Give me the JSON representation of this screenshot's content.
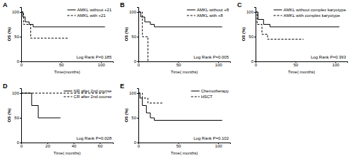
{
  "chart_data": [
    {
      "type": "line",
      "title": "A",
      "x_label": "Time(months)",
      "y_label": "OS (%)",
      "xlim": [
        0,
        115
      ],
      "ylim": [
        0,
        110
      ],
      "xticks": [
        0,
        50,
        100
      ],
      "yticks": [
        0,
        50,
        100
      ],
      "legend": "upper right",
      "annotations": [
        "Log Rank P=0.185"
      ],
      "series": [
        {
          "name": "AMKL without +21",
          "color": "#000000",
          "line_style": "solid",
          "x": [
            0,
            2,
            5,
            10,
            15,
            105
          ],
          "values": [
            100,
            90,
            80,
            75,
            70,
            70
          ]
        },
        {
          "name": "AMKL with +21",
          "color": "#000000",
          "line_style": "dashed",
          "x": [
            0,
            3,
            12,
            60
          ],
          "values": [
            100,
            75,
            47,
            47
          ]
        }
      ]
    },
    {
      "type": "line",
      "title": "B",
      "x_label": "Time( months)",
      "y_label": "OS (%)",
      "xlim": [
        0,
        115
      ],
      "ylim": [
        0,
        110
      ],
      "xticks": [
        0,
        50,
        100
      ],
      "yticks": [
        0,
        50,
        100
      ],
      "legend": "upper right",
      "annotations": [
        "Log Rank P=0.005"
      ],
      "series": [
        {
          "name": "AMKL without +8",
          "color": "#000000",
          "line_style": "solid",
          "x": [
            0,
            3,
            8,
            15,
            20,
            105
          ],
          "values": [
            100,
            90,
            80,
            75,
            70,
            70
          ]
        },
        {
          "name": "AMKL with +8",
          "color": "#000000",
          "line_style": "dashed",
          "x": [
            0,
            5,
            12
          ],
          "values": [
            100,
            50,
            0
          ]
        }
      ]
    },
    {
      "type": "line",
      "title": "C",
      "x_label": "Time( months)",
      "y_label": "OS (%)",
      "xlim": [
        0,
        115
      ],
      "ylim": [
        0,
        110
      ],
      "xticks": [
        0,
        50,
        100
      ],
      "yticks": [
        0,
        50,
        100
      ],
      "legend": "upper right",
      "annotations": [
        "Log Rank P=0.393"
      ],
      "series": [
        {
          "name": "AMKL without complex karyotype",
          "color": "#000000",
          "line_style": "solid",
          "x": [
            0,
            3,
            10,
            18,
            105
          ],
          "values": [
            100,
            85,
            75,
            70,
            70
          ]
        },
        {
          "name": "AMKL with complex karyotype",
          "color": "#000000",
          "line_style": "dashed",
          "x": [
            0,
            2,
            8,
            15,
            60
          ],
          "values": [
            100,
            75,
            55,
            45,
            45
          ]
        }
      ]
    },
    {
      "type": "line",
      "title": "D",
      "x_label": "Time( months)",
      "y_label": "OS (%)",
      "xlim": [
        0,
        70
      ],
      "ylim": [
        0,
        110
      ],
      "xticks": [
        0,
        20,
        40,
        60
      ],
      "yticks": [
        0,
        50,
        100
      ],
      "legend": "upper right",
      "annotations": [
        "Log Rank P=0.028"
      ],
      "series": [
        {
          "name": "NR after 2nd course",
          "color": "#000000",
          "line_style": "solid",
          "x": [
            0,
            8,
            13,
            30
          ],
          "values": [
            100,
            75,
            50,
            50
          ]
        },
        {
          "name": "CR after 2nd course",
          "color": "#000000",
          "line_style": "dashed",
          "x": [
            0,
            65
          ],
          "values": [
            100,
            100
          ]
        }
      ]
    },
    {
      "type": "line",
      "title": "E",
      "x_label": "Time( months)",
      "y_label": "OS (%)",
      "xlim": [
        0,
        115
      ],
      "ylim": [
        0,
        110
      ],
      "xticks": [
        0,
        50,
        100
      ],
      "yticks": [
        0,
        50,
        100
      ],
      "legend": "upper right",
      "annotations": [
        "Log Rank P=0.102"
      ],
      "series": [
        {
          "name": "Chemotherapy",
          "color": "#000000",
          "line_style": "solid",
          "x": [
            0,
            2,
            5,
            10,
            15,
            20,
            105
          ],
          "values": [
            100,
            90,
            75,
            60,
            50,
            45,
            45
          ]
        },
        {
          "name": "HSCT",
          "color": "#000000",
          "line_style": "dashed",
          "x": [
            0,
            5,
            12,
            30
          ],
          "values": [
            100,
            90,
            80,
            80
          ]
        }
      ]
    }
  ]
}
